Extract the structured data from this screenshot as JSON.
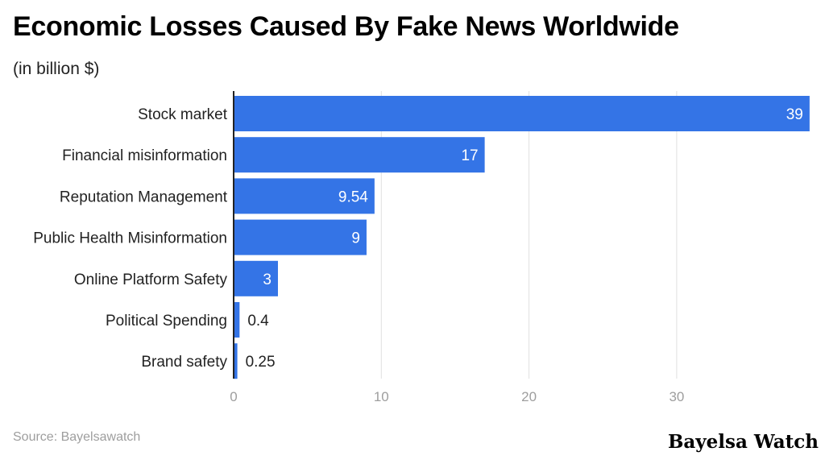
{
  "header": {
    "title": "Economic Losses Caused By Fake News Worldwide",
    "subtitle": "(in billion $)"
  },
  "footer": {
    "source": "Source: Bayelsawatch",
    "brand": "Bayelsa Watch"
  },
  "colors": {
    "bar": "#3474e6",
    "grid": "#e0e0e0",
    "axis": "#222222",
    "tick_label": "#9e9e9e",
    "category_label": "#222222",
    "value_label_inside": "#ffffff",
    "value_label_outside": "#222222"
  },
  "chart_data": {
    "type": "bar",
    "orientation": "horizontal",
    "title": "Economic Losses Caused By Fake News Worldwide",
    "subtitle": "(in billion $)",
    "xlabel": "",
    "ylabel": "",
    "categories": [
      "Stock market",
      "Financial misinformation",
      "Reputation Management",
      "Public Health Misinformation",
      "Online Platform Safety",
      "Political Spending",
      "Brand safety"
    ],
    "values": [
      39,
      17,
      9.54,
      9,
      3,
      0.4,
      0.25
    ],
    "value_labels": [
      "39",
      "17",
      "9.54",
      "9",
      "3",
      "0.4",
      "0.25"
    ],
    "xlim": [
      0,
      39
    ],
    "xticks": [
      0,
      10,
      20,
      30
    ],
    "grid": true,
    "legend": "none"
  }
}
